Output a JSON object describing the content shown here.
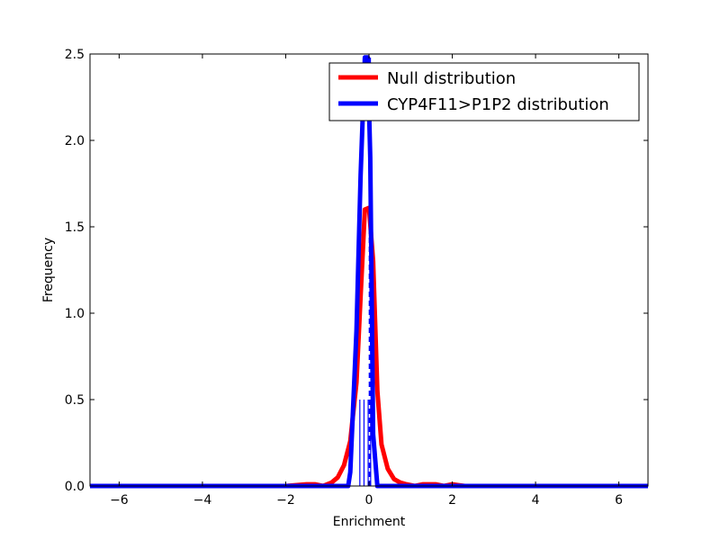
{
  "chart_data": {
    "type": "line",
    "title": "",
    "xlabel": "Enrichment",
    "ylabel": "Frequency",
    "xlim": [
      -6.7,
      6.7
    ],
    "ylim": [
      0,
      2.5
    ],
    "xticks": [
      -6,
      -4,
      -2,
      0,
      2,
      4,
      6
    ],
    "yticks": [
      0.0,
      0.5,
      1.0,
      1.5,
      2.0,
      2.5
    ],
    "xtick_labels": [
      "−6",
      "−4",
      "−2",
      "0",
      "2",
      "4",
      "6"
    ],
    "ytick_labels": [
      "0.0",
      "0.5",
      "1.0",
      "1.5",
      "2.0",
      "2.5"
    ],
    "grid": false,
    "legend_position": "upper right",
    "series": [
      {
        "name": "Null distribution",
        "color": "#ff0000",
        "x": [
          -6.7,
          -2.0,
          -1.5,
          -1.3,
          -1.1,
          -0.9,
          -0.75,
          -0.6,
          -0.45,
          -0.3,
          -0.2,
          -0.1,
          0.0,
          0.1,
          0.2,
          0.3,
          0.45,
          0.6,
          0.75,
          0.9,
          1.1,
          1.3,
          1.6,
          1.8,
          2.0,
          2.3,
          6.7
        ],
        "y": [
          0.0,
          0.0,
          0.01,
          0.01,
          0.0,
          0.02,
          0.05,
          0.12,
          0.26,
          0.6,
          1.1,
          1.6,
          1.61,
          1.3,
          0.55,
          0.24,
          0.1,
          0.04,
          0.02,
          0.01,
          0.0,
          0.01,
          0.01,
          0.0,
          0.01,
          0.0,
          0.0
        ]
      },
      {
        "name": "CYP4F11>P1P2 distribution",
        "color": "#0000ff",
        "x": [
          -6.7,
          -0.5,
          -0.45,
          -0.3,
          -0.2,
          -0.1,
          -0.03,
          0.03,
          0.1,
          0.2,
          0.3,
          0.35,
          6.7
        ],
        "y": [
          0.0,
          0.0,
          0.08,
          0.9,
          1.8,
          2.48,
          2.48,
          1.9,
          0.3,
          0.0,
          0.0,
          0.0,
          0.0
        ]
      }
    ],
    "observed_lines": [
      {
        "x": -0.22,
        "y": 0.5
      },
      {
        "x": -0.12,
        "y": 0.5
      },
      {
        "x": -0.02,
        "y": 0.5
      },
      {
        "x": 0.04,
        "y": 0.5
      }
    ],
    "mean_line": {
      "x": 0.02,
      "y": 2.5,
      "style": "dashed",
      "color": "#0000ff"
    }
  }
}
